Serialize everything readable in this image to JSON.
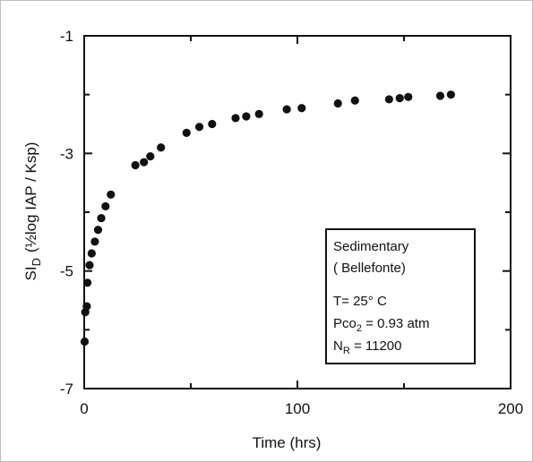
{
  "chart_data": {
    "type": "scatter",
    "xlabel": "Time (hrs)",
    "ylabel_main": "SI",
    "ylabel_sub": "D",
    "ylabel_rest": "(½log IAP / Ksp)",
    "xlim": [
      0,
      200
    ],
    "ylim": [
      -7,
      -1
    ],
    "xticks": [
      0,
      100,
      200
    ],
    "yticks": [
      -1,
      -3,
      -5,
      -7
    ],
    "grid": false,
    "points": [
      {
        "x": 0.2,
        "y": -6.2
      },
      {
        "x": 0.5,
        "y": -5.7
      },
      {
        "x": 1.2,
        "y": -5.6
      },
      {
        "x": 1.5,
        "y": -5.2
      },
      {
        "x": 2.5,
        "y": -4.9
      },
      {
        "x": 3.5,
        "y": -4.7
      },
      {
        "x": 5,
        "y": -4.5
      },
      {
        "x": 6.5,
        "y": -4.3
      },
      {
        "x": 8,
        "y": -4.1
      },
      {
        "x": 10,
        "y": -3.9
      },
      {
        "x": 12.5,
        "y": -3.7
      },
      {
        "x": 24,
        "y": -3.2
      },
      {
        "x": 28,
        "y": -3.15
      },
      {
        "x": 31,
        "y": -3.05
      },
      {
        "x": 36,
        "y": -2.9
      },
      {
        "x": 48,
        "y": -2.65
      },
      {
        "x": 54,
        "y": -2.55
      },
      {
        "x": 60,
        "y": -2.5
      },
      {
        "x": 71,
        "y": -2.4
      },
      {
        "x": 76,
        "y": -2.37
      },
      {
        "x": 82,
        "y": -2.33
      },
      {
        "x": 95,
        "y": -2.25
      },
      {
        "x": 102,
        "y": -2.23
      },
      {
        "x": 119,
        "y": -2.15
      },
      {
        "x": 127,
        "y": -2.1
      },
      {
        "x": 143,
        "y": -2.08
      },
      {
        "x": 148,
        "y": -2.06
      },
      {
        "x": 152,
        "y": -2.04
      },
      {
        "x": 167,
        "y": -2.02
      },
      {
        "x": 172,
        "y": -2.0
      }
    ],
    "marker_color": "#111111"
  },
  "legend": {
    "line1": "Sedimentary",
    "line2": "( Bellefonte)",
    "line3": "T= 25° C",
    "line4_a": "Pco",
    "line4_sub": "2",
    "line4_b": " =  0.93 atm",
    "line5_a": "N",
    "line5_sub": "R",
    "line5_b": " = 11200"
  }
}
